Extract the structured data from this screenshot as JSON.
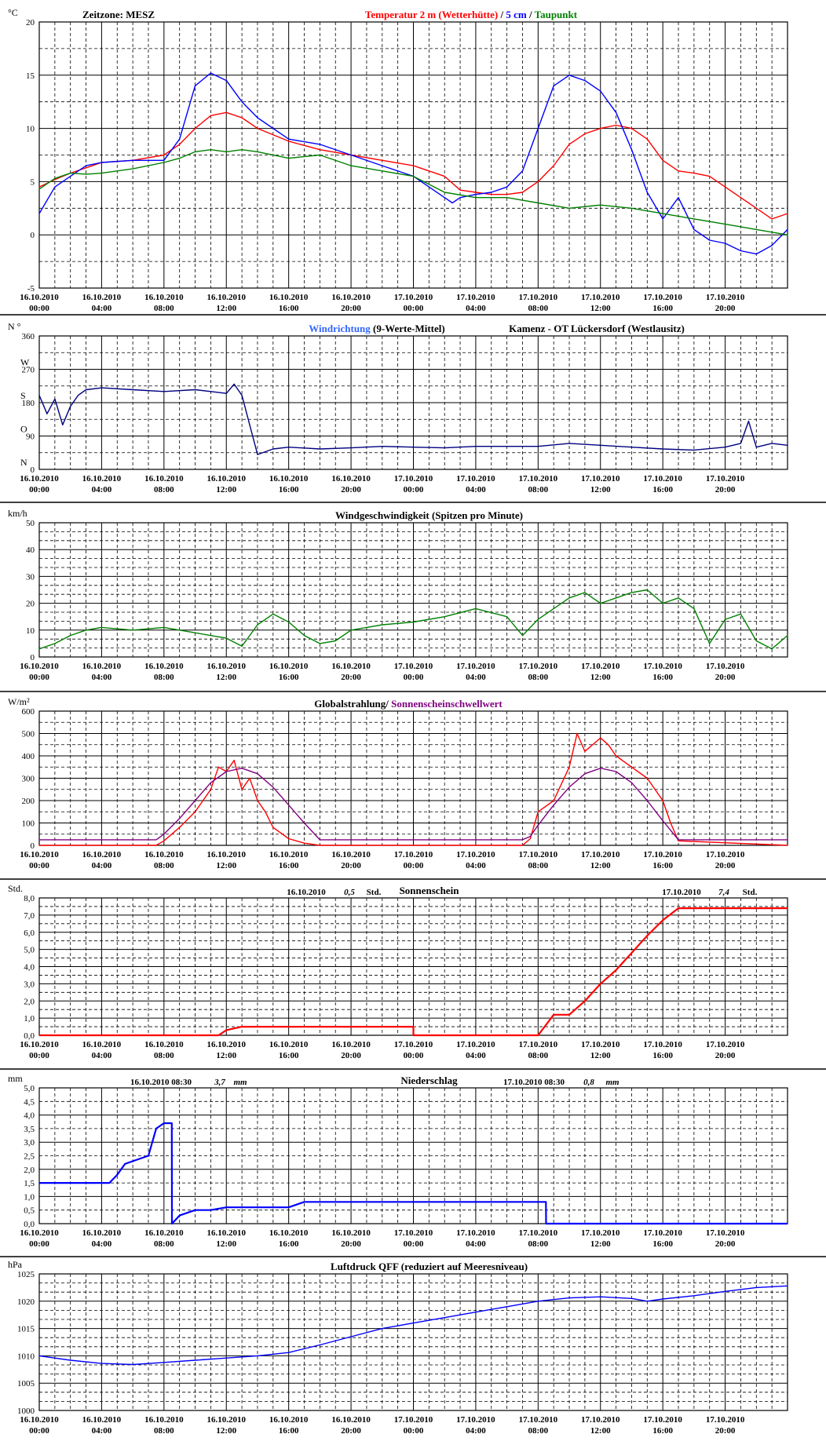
{
  "x_ticks": [
    {
      "date": "16.10.2010",
      "time": "00:00"
    },
    {
      "date": "16.10.2010",
      "time": "04:00"
    },
    {
      "date": "16.10.2010",
      "time": "08:00"
    },
    {
      "date": "16.10.2010",
      "time": "12:00"
    },
    {
      "date": "16.10.2010",
      "time": "16:00"
    },
    {
      "date": "16.10.2010",
      "time": "20:00"
    },
    {
      "date": "17.10.2010",
      "time": "00:00"
    },
    {
      "date": "17.10.2010",
      "time": "04:00"
    },
    {
      "date": "17.10.2010",
      "time": "08:00"
    },
    {
      "date": "17.10.2010",
      "time": "12:00"
    },
    {
      "date": "17.10.2010",
      "time": "16:00"
    },
    {
      "date": "17.10.2010",
      "time": "20:00"
    }
  ],
  "colors": {
    "red": "#ff0000",
    "blue": "#0000ff",
    "lightblue": "#3366ff",
    "green": "#008000",
    "navy": "#000080",
    "purple": "#800080",
    "black": "#000000"
  },
  "chart_data": [
    {
      "type": "line",
      "unit": "°C",
      "header_left": "Zeitzone: MESZ",
      "title_parts": [
        {
          "text": "Temperatur 2 m (Wetterhütte)",
          "color": "#ff0000"
        },
        {
          "text": " / ",
          "color": "#000000"
        },
        {
          "text": "5 cm",
          "color": "#0000ff"
        },
        {
          "text": " / ",
          "color": "#000000"
        },
        {
          "text": "Taupunkt",
          "color": "#008000"
        }
      ],
      "ylim": [
        -5,
        20
      ],
      "y_ticks": [
        "-5",
        "0",
        "5",
        "10",
        "15",
        "20"
      ],
      "series": [
        {
          "name": "Temperatur 2 m (Wetterhütte)",
          "color": "#ff0000",
          "x": [
            0,
            1,
            2,
            3,
            4,
            6,
            8,
            9,
            10,
            11,
            12,
            13,
            14,
            16,
            18,
            20,
            22,
            24,
            26,
            27,
            28,
            29,
            30,
            31,
            32,
            33,
            34,
            35,
            36,
            37,
            38,
            39,
            40,
            41,
            42,
            43,
            44,
            45,
            46,
            47,
            48
          ],
          "values": [
            4.5,
            5.2,
            5.8,
            6.3,
            6.8,
            7.0,
            7.5,
            8.5,
            10.0,
            11.2,
            11.5,
            11.0,
            10.0,
            8.8,
            8.0,
            7.5,
            7.0,
            6.5,
            5.5,
            4.2,
            4.0,
            3.8,
            3.8,
            4.0,
            5.0,
            6.5,
            8.5,
            9.5,
            10.0,
            10.3,
            10.0,
            9.0,
            7.0,
            6.0,
            5.8,
            5.5,
            4.5,
            3.5,
            2.5,
            1.5,
            2.0
          ]
        },
        {
          "name": "5 cm",
          "color": "#0000ff",
          "x": [
            0,
            1,
            2,
            3,
            4,
            6,
            8,
            9,
            10,
            11,
            12,
            13,
            14,
            16,
            18,
            20,
            22,
            24,
            26,
            26.5,
            27,
            28,
            29,
            30,
            31,
            32,
            33,
            34,
            35,
            36,
            37,
            38,
            39,
            40,
            41,
            42,
            43,
            44,
            45,
            46,
            47,
            48
          ],
          "values": [
            2.0,
            4.5,
            5.5,
            6.5,
            6.8,
            7.0,
            7.0,
            9.0,
            14.0,
            15.2,
            14.5,
            12.5,
            11.0,
            9.0,
            8.5,
            7.5,
            6.5,
            5.5,
            3.5,
            3.0,
            3.5,
            3.8,
            4.0,
            4.5,
            6.0,
            10.0,
            14.0,
            15.0,
            14.5,
            13.5,
            11.5,
            8.0,
            4.0,
            1.5,
            3.5,
            0.5,
            -0.5,
            -0.8,
            -1.5,
            -1.8,
            -1.0,
            0.5
          ]
        },
        {
          "name": "Taupunkt",
          "color": "#008000",
          "x": [
            0,
            1,
            2,
            3,
            4,
            6,
            8,
            9,
            10,
            11,
            12,
            13,
            14,
            16,
            18,
            20,
            22,
            24,
            26,
            28,
            30,
            32,
            34,
            36,
            38,
            40,
            42,
            44,
            46,
            48
          ],
          "values": [
            4.3,
            5.3,
            5.8,
            5.7,
            5.8,
            6.2,
            6.8,
            7.2,
            7.8,
            8.0,
            7.8,
            8.0,
            7.8,
            7.2,
            7.5,
            6.5,
            6.0,
            5.5,
            4.0,
            3.5,
            3.5,
            3.0,
            2.5,
            2.8,
            2.5,
            2.0,
            1.5,
            1.0,
            0.5,
            0.0
          ]
        }
      ]
    },
    {
      "type": "line",
      "unit": "N °",
      "title_parts": [
        {
          "text": "Windrichtung",
          "color": "#3366ff"
        },
        {
          "text": " (9-Werte-Mittel)",
          "color": "#000000"
        }
      ],
      "subtitle": "Kamenz - OT Lückersdorf (Westlausitz)",
      "ylim": [
        0,
        360
      ],
      "y_ticks": [
        "0",
        "90",
        "180",
        "270",
        "360"
      ],
      "compass": [
        "N",
        "O",
        "S",
        "W"
      ],
      "series": [
        {
          "name": "Windrichtung",
          "color": "#000080",
          "x": [
            0,
            0.5,
            1,
            1.5,
            2,
            2.5,
            3,
            4,
            6,
            8,
            10,
            11,
            12,
            12.5,
            13,
            13.5,
            14,
            15,
            16,
            18,
            20,
            22,
            24,
            26,
            28,
            30,
            32,
            34,
            36,
            38,
            40,
            42,
            44,
            45,
            45.5,
            46,
            47,
            48
          ],
          "values": [
            200,
            150,
            190,
            120,
            170,
            200,
            215,
            220,
            215,
            210,
            215,
            210,
            205,
            230,
            200,
            120,
            40,
            55,
            60,
            55,
            58,
            62,
            60,
            58,
            62,
            62,
            62,
            70,
            65,
            60,
            55,
            52,
            60,
            70,
            130,
            60,
            70,
            65
          ]
        }
      ]
    },
    {
      "type": "line",
      "unit": "km/h",
      "title": "Windgeschwindigkeit (Spitzen pro Minute)",
      "ylim": [
        0,
        50
      ],
      "y_ticks": [
        "0",
        "10",
        "20",
        "30",
        "40",
        "50"
      ],
      "series": [
        {
          "name": "Windgeschwindigkeit",
          "color": "#008000",
          "x": [
            0,
            1,
            2,
            3,
            4,
            6,
            8,
            10,
            12,
            13,
            14,
            15,
            16,
            17,
            18,
            19,
            20,
            21,
            22,
            24,
            26,
            28,
            30,
            31,
            32,
            33,
            34,
            35,
            36,
            37,
            38,
            39,
            40,
            41,
            42,
            43,
            44,
            45,
            46,
            47,
            48
          ],
          "values": [
            3,
            5,
            8,
            10,
            11,
            10,
            11,
            9,
            7,
            4,
            12,
            16,
            13,
            8,
            5,
            6,
            10,
            11,
            12,
            13,
            15,
            18,
            15,
            8,
            14,
            18,
            22,
            24,
            20,
            22,
            24,
            25,
            20,
            22,
            18,
            5,
            14,
            16,
            6,
            3,
            8
          ]
        }
      ]
    },
    {
      "type": "line",
      "unit": "W/m²",
      "title_parts": [
        {
          "text": "Globalstrahlung/",
          "color": "#000000"
        },
        {
          "text": " Sonnenscheinschwellwert",
          "color": "#800080"
        }
      ],
      "ylim": [
        0,
        600
      ],
      "y_ticks": [
        "0",
        "100",
        "200",
        "300",
        "400",
        "500",
        "600"
      ],
      "series": [
        {
          "name": "Globalstrahlung",
          "color": "#ff0000",
          "x": [
            0,
            7.5,
            8,
            9,
            10,
            10.5,
            11,
            11.5,
            12,
            12.5,
            13,
            13.5,
            14,
            14.5,
            15,
            16,
            17,
            18,
            31,
            31.5,
            32,
            33,
            34,
            34.5,
            35,
            35.5,
            36,
            36.5,
            37,
            38,
            39,
            40,
            40.5,
            41,
            48
          ],
          "values": [
            0,
            0,
            20,
            80,
            150,
            200,
            250,
            350,
            330,
            380,
            250,
            300,
            200,
            150,
            80,
            30,
            10,
            0,
            0,
            30,
            150,
            200,
            350,
            500,
            420,
            450,
            480,
            450,
            400,
            350,
            300,
            200,
            100,
            20,
            0
          ]
        },
        {
          "name": "Sonnenscheinschwellwert",
          "color": "#800080",
          "x": [
            0,
            7.5,
            8,
            9,
            10,
            11,
            12,
            13,
            14,
            15,
            16,
            17,
            18,
            31,
            31.5,
            32,
            33,
            34,
            35,
            36,
            37,
            38,
            39,
            40,
            41,
            48
          ],
          "values": [
            25,
            25,
            50,
            120,
            200,
            280,
            330,
            345,
            320,
            260,
            180,
            100,
            25,
            25,
            40,
            90,
            180,
            260,
            320,
            345,
            330,
            280,
            200,
            110,
            25,
            25
          ]
        }
      ]
    },
    {
      "type": "line",
      "unit": "Std.",
      "title": "Sonnenschein",
      "day_totals": [
        {
          "date": "16.10.2010",
          "value": "0,5",
          "unit": "Std."
        },
        {
          "date": "17.10.2010",
          "value": "7,4",
          "unit": "Std."
        }
      ],
      "ylim": [
        0,
        8
      ],
      "y_ticks": [
        "0,0",
        "1,0",
        "2,0",
        "3,0",
        "4,0",
        "5,0",
        "6,0",
        "7,0",
        "8,0"
      ],
      "series": [
        {
          "name": "Sonnenschein",
          "color": "#ff0000",
          "x": [
            0,
            11.5,
            12,
            13,
            24,
            24.001,
            32,
            33,
            34,
            35,
            36,
            37,
            38,
            39,
            40,
            41,
            42,
            48
          ],
          "values": [
            0,
            0,
            0.3,
            0.5,
            0.5,
            0,
            0,
            1.2,
            1.2,
            2.0,
            3.0,
            3.8,
            4.8,
            5.8,
            6.7,
            7.4,
            7.4,
            7.4
          ]
        }
      ]
    },
    {
      "type": "line",
      "unit": "mm",
      "title": "Niederschlag",
      "day_totals": [
        {
          "date": "16.10.2010 08:30",
          "value": "3,7",
          "unit": "mm"
        },
        {
          "date": "17.10.2010 08:30",
          "value": "0,8",
          "unit": "mm"
        }
      ],
      "ylim": [
        0,
        5
      ],
      "y_ticks": [
        "0,0",
        "0,5",
        "1,0",
        "1,5",
        "2,0",
        "2,5",
        "3,0",
        "3,5",
        "4,0",
        "4,5",
        "5,0"
      ],
      "series": [
        {
          "name": "Niederschlag",
          "color": "#0000ff",
          "x": [
            0,
            4.5,
            5,
            5.5,
            6,
            7,
            7.5,
            8,
            8.5,
            8.51,
            9,
            10,
            11,
            12,
            13,
            14,
            16,
            17,
            18,
            20,
            22,
            24,
            26,
            28,
            32,
            32.5,
            32.51,
            48
          ],
          "values": [
            1.5,
            1.5,
            1.8,
            2.2,
            2.3,
            2.5,
            3.5,
            3.7,
            3.7,
            0.0,
            0.3,
            0.5,
            0.5,
            0.6,
            0.6,
            0.6,
            0.6,
            0.8,
            0.8,
            0.8,
            0.8,
            0.8,
            0.8,
            0.8,
            0.8,
            0.8,
            0.0,
            0.0
          ]
        }
      ]
    },
    {
      "type": "line",
      "unit": "hPa",
      "title": "Luftdruck QFF (reduziert auf Meeresniveau)",
      "ylim": [
        1000,
        1025
      ],
      "y_ticks": [
        "1000",
        "1005",
        "1010",
        "1015",
        "1020",
        "1025"
      ],
      "series": [
        {
          "name": "Luftdruck QFF",
          "color": "#0000ff",
          "x": [
            0,
            2,
            4,
            6,
            8,
            10,
            12,
            14,
            16,
            18,
            20,
            22,
            24,
            26,
            28,
            30,
            32,
            34,
            36,
            38,
            39,
            40,
            42,
            44,
            46,
            48
          ],
          "values": [
            1010,
            1009.2,
            1008.6,
            1008.4,
            1008.8,
            1009.2,
            1009.6,
            1010,
            1010.6,
            1012,
            1013.5,
            1015,
            1016,
            1017,
            1018,
            1019,
            1020,
            1020.6,
            1020.8,
            1020.5,
            1020.0,
            1020.4,
            1021,
            1021.8,
            1022.5,
            1022.8
          ]
        }
      ]
    }
  ]
}
